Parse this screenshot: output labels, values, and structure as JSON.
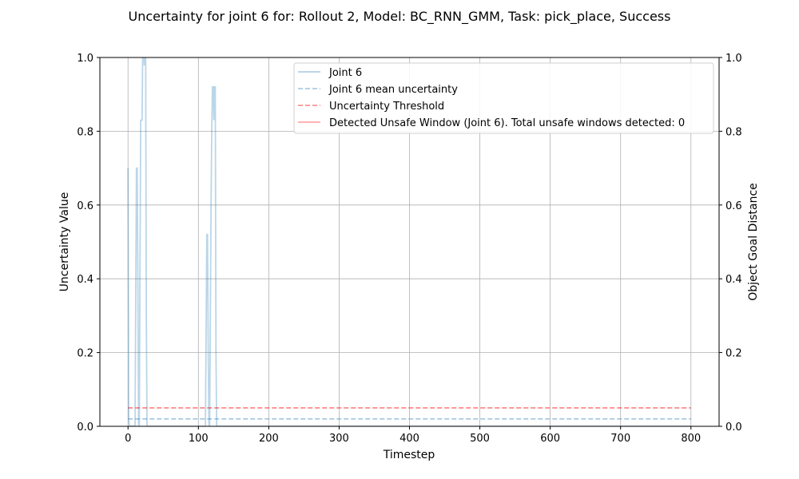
{
  "chart_data": {
    "type": "line",
    "title": "Uncertainty for joint 6 for: Rollout 2, Model: BC_RNN_GMM, Task: pick_place, Success",
    "xlabel": "Timestep",
    "ylabel": "Uncertainty Value",
    "ylabel_right": "Object Goal Distance",
    "xlim": [
      -40,
      840
    ],
    "ylim": [
      0,
      1
    ],
    "ylim_right": [
      0,
      1
    ],
    "x_ticks": [
      0,
      100,
      200,
      300,
      400,
      500,
      600,
      700,
      800
    ],
    "y_ticks": [
      0.0,
      0.2,
      0.4,
      0.6,
      0.8,
      1.0
    ],
    "y_tick_labels": [
      "0.0",
      "0.2",
      "0.4",
      "0.6",
      "0.8",
      "1.0"
    ],
    "grid": true,
    "legend_position": "top-right",
    "series": [
      {
        "name": "Joint 6",
        "style": "solid",
        "color": "#1f77b4",
        "alpha": 0.3,
        "x": [
          0,
          1,
          2,
          3,
          10,
          12,
          13,
          14,
          15,
          16,
          18,
          20,
          21,
          22,
          23,
          24,
          25,
          26,
          27,
          30,
          100,
          110,
          112,
          113,
          114,
          115,
          116,
          118,
          119,
          120,
          121,
          122,
          123,
          124,
          125,
          126,
          127,
          130,
          800
        ],
        "y": [
          0.7,
          0.02,
          0.0,
          0.0,
          0.0,
          0.7,
          0.7,
          0.4,
          0.0,
          0.0,
          0.83,
          0.83,
          1.05,
          1.1,
          0.98,
          0.98,
          1.05,
          0.3,
          0.0,
          0.0,
          0.0,
          0.0,
          0.52,
          0.52,
          0.2,
          0.0,
          0.0,
          0.6,
          0.8,
          0.92,
          0.92,
          0.83,
          0.92,
          0.92,
          0.2,
          0.0,
          0.0,
          0.0,
          0.0
        ]
      },
      {
        "name": "Joint 6 mean uncertainty",
        "style": "dashed",
        "color": "#1f77b4",
        "alpha": 0.45,
        "x": [
          0,
          800
        ],
        "y": [
          0.02,
          0.02
        ]
      },
      {
        "name": "Uncertainty Threshold",
        "style": "dashed",
        "color": "#ff0000",
        "alpha": 0.5,
        "x": [
          0,
          800
        ],
        "y": [
          0.05,
          0.05
        ]
      },
      {
        "name": "Detected Unsafe Window (Joint 6). Total unsafe windows detected: 0",
        "style": "solid",
        "color": "#ff0000",
        "alpha": 0.35,
        "x": [],
        "y": []
      }
    ]
  }
}
